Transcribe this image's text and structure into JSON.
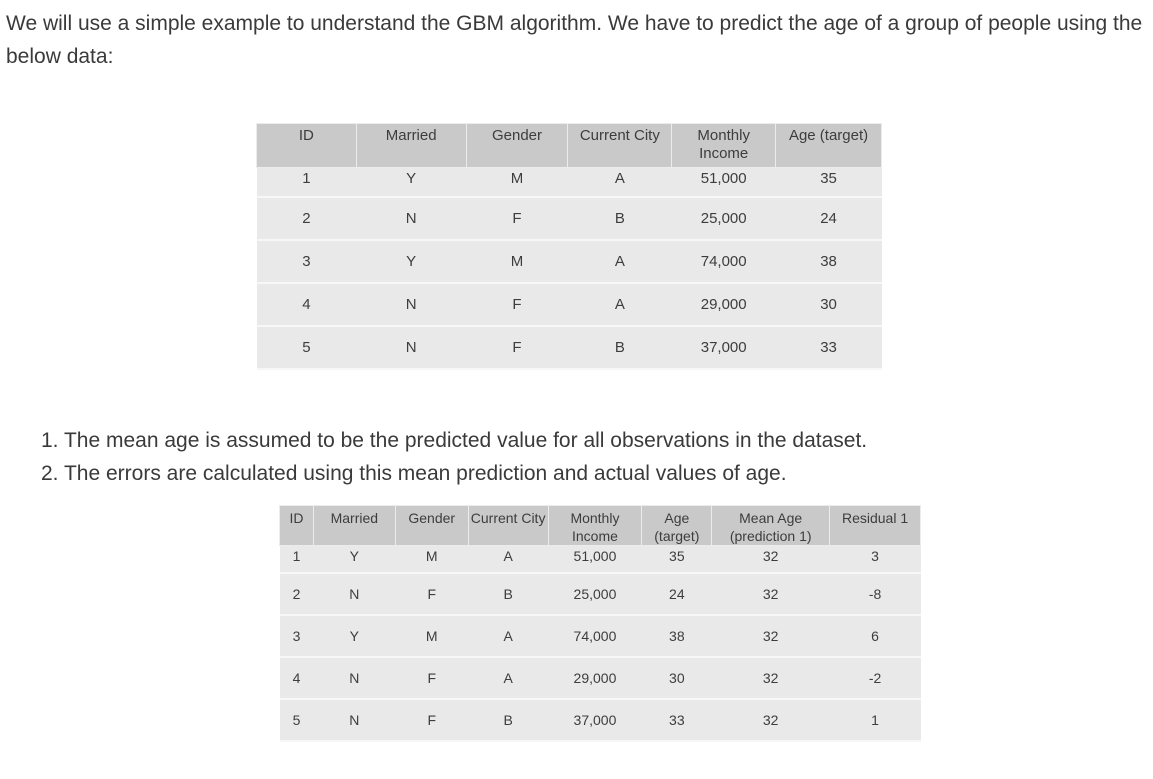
{
  "intro": "We will use a simple example to understand the GBM algorithm. We have to predict the age of a group of people using the below data:",
  "table1": {
    "headers": [
      "ID",
      "Married",
      "Gender",
      "Current City",
      "Monthly Income",
      "Age (target)"
    ],
    "rows": [
      [
        "1",
        "Y",
        "M",
        "A",
        "51,000",
        "35"
      ],
      [
        "2",
        "N",
        "F",
        "B",
        "25,000",
        "24"
      ],
      [
        "3",
        "Y",
        "M",
        "A",
        "74,000",
        "38"
      ],
      [
        "4",
        "N",
        "F",
        "A",
        "29,000",
        "30"
      ],
      [
        "5",
        "N",
        "F",
        "B",
        "37,000",
        "33"
      ]
    ]
  },
  "steps": [
    "1. The mean age is assumed to be the predicted value for all observations in the dataset.",
    "2. The errors are calculated using this mean prediction and actual values of age."
  ],
  "table2": {
    "headers": [
      "ID",
      "Married",
      "Gender",
      "Current City",
      "Monthly Income",
      "Age (target)",
      "Mean Age (prediction 1)",
      "Residual 1"
    ],
    "rows": [
      [
        "1",
        "Y",
        "M",
        "A",
        "51,000",
        "35",
        "32",
        "3"
      ],
      [
        "2",
        "N",
        "F",
        "B",
        "25,000",
        "24",
        "32",
        "-8"
      ],
      [
        "3",
        "Y",
        "M",
        "A",
        "74,000",
        "38",
        "32",
        "6"
      ],
      [
        "4",
        "N",
        "F",
        "A",
        "29,000",
        "30",
        "32",
        "-2"
      ],
      [
        "5",
        "N",
        "F",
        "B",
        "37,000",
        "33",
        "32",
        "1"
      ]
    ]
  }
}
